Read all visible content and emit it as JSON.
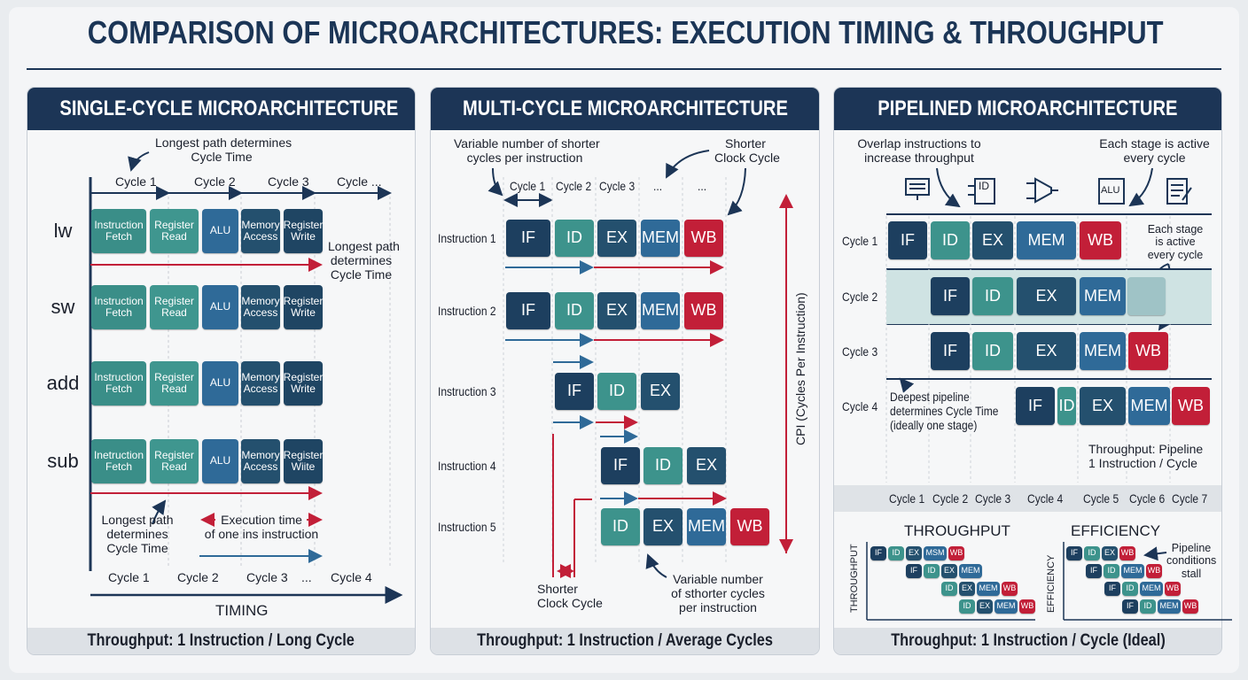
{
  "title": "COMPARISON OF MICROARCHITECTURES: EXECUTION TIMING & THROUGHPUT",
  "colors": {
    "navy": "#1c3556",
    "teal": "#3d938c",
    "blue": "#2f6a98",
    "dark": "#24506e",
    "deep": "#1d3f5f",
    "red": "#c21f38",
    "band": "#cfe3e3"
  },
  "single": {
    "header": "SINGLE-CYCLE MICROARCHITECTURE",
    "note_top": "Longest path determines\nCycle Time",
    "cycles_top": [
      "Cycle 1",
      "Cycle 2",
      "Cycle 3",
      "Cycle ..."
    ],
    "rows": [
      {
        "label": "lw",
        "stages": [
          "Instruction\nFetch",
          "Register\nRead",
          "ALU",
          "Memory\nAccess",
          "Register\nWrite"
        ]
      },
      {
        "label": "sw",
        "stages": [
          "Instruction\nFetch",
          "Register\nRead",
          "ALU",
          "Memory\nAccess",
          "Register\nWrite"
        ]
      },
      {
        "label": "add",
        "stages": [
          "Instruction\nFetch",
          "Register\nRead",
          "ALU",
          "Memory\nAccess",
          "Register\nWrite"
        ]
      },
      {
        "label": "sub",
        "stages": [
          "Inetruction\nFetch",
          "Register\nRead",
          "ALU",
          "Memory\nAccess",
          "Register\nWiite"
        ]
      }
    ],
    "note_right": "Longest path\ndetermines\nCycle Time",
    "note_bottom": "Longest path\ndetermines\nCycle Time",
    "note_exec": "Execution time\nof one ins instruction",
    "cycles_bottom": [
      "Cycle 1",
      "Cycle 2",
      "Cycle 3",
      "...",
      "Cycle 4"
    ],
    "axis_label": "TIMING",
    "footer": "Throughput: 1 Instruction / Long Cycle"
  },
  "multi": {
    "header": "MULTI-CYCLE MICROARCHITECTURE",
    "note_left": "Variable number of shorter\ncycles per instruction",
    "note_right": "Shorter\nClock Cycle",
    "cycles_top": [
      "Cycle 1",
      "Cycle 2",
      "Cycle 3",
      "...",
      "..."
    ],
    "rows": [
      {
        "label": "Instruction 1",
        "stages": [
          "IF",
          "ID",
          "EX",
          "MEM",
          "WB"
        ]
      },
      {
        "label": "Instruction 2",
        "stages": [
          "IF",
          "ID",
          "EX",
          "MEM",
          "WB"
        ]
      },
      {
        "label": "Instruction 3",
        "stages": [
          "IF",
          "ID",
          "EX"
        ]
      },
      {
        "label": "Instruction 4",
        "stages": [
          "IF",
          "ID",
          "EX"
        ]
      },
      {
        "label": "Instruction 5",
        "stages": [
          "ID",
          "EX",
          "MEM",
          "WB"
        ]
      }
    ],
    "cpi_label": "CPI (Cycles Per Instruction)",
    "note_clock": "Shorter\nClock Cycle",
    "note_variable": "Variable number\nof sthorter cycles\nper instruction",
    "footer": "Throughput: 1 Instruction / Average Cycles"
  },
  "pipe": {
    "header": "PIPELINED MICROARCHITECTURE",
    "note_left": "Overlap instructions to\nincrease throughput",
    "note_right": "Each stage is active\nevery cycle",
    "icons": [
      "instruction-memory-icon",
      "decode-id-icon",
      "alu-mux-icon",
      "alu-icon",
      "writeback-list-icon"
    ],
    "icon_text": {
      "decode": "ID",
      "alu": "ALU"
    },
    "rows": [
      {
        "label": "Cycle 1",
        "stages": [
          "IF",
          "ID",
          "EX",
          "MEM",
          "WB"
        ]
      },
      {
        "label": "Cycle 2",
        "stages": [
          "IF",
          "ID",
          "EX",
          "MEM",
          ""
        ]
      },
      {
        "label": "Cycle 3",
        "stages": [
          "IF",
          "ID",
          "EX",
          "MEM",
          "WB"
        ]
      },
      {
        "label": "Cycle 4",
        "stages": [
          "IF",
          "ID",
          "EX",
          "MEM",
          "WB"
        ]
      }
    ],
    "note_stage": "Each stage\nis active\nevery cycle",
    "note_deep": "Deepest pipeline\ndetermines Cycle Time\n(ideally one stage)",
    "note_throughput": "Throughput: Pipeline\n1 Instruction / Cycle",
    "cycles_bottom": [
      "Cycle 1",
      "Cycle 2",
      "Cycle 3",
      "Cycle 4",
      "Cycle 5",
      "Cycle 6",
      "Cycle 7"
    ],
    "throughput": {
      "title": "THROUGHPUT",
      "axis": "THROUGHPUT",
      "rows": [
        [
          "IF",
          "ID",
          "EX",
          "MSM",
          "WB"
        ],
        [
          "IF",
          "ID",
          "EX",
          "MEM"
        ],
        [
          "ID",
          "EX",
          "MEM",
          "WB"
        ],
        [
          "ID",
          "EX",
          "MEM",
          "WB"
        ]
      ]
    },
    "efficiency": {
      "title": "EFFICIENCY",
      "axis": "EFFICIENCY",
      "note": "Pipeline\nconditions\nstall",
      "rows": [
        [
          "IF",
          "ID",
          "EX",
          "WB"
        ],
        [
          "IF",
          "ID",
          "MEM",
          "WB"
        ],
        [
          "IF",
          "ID",
          "MEM",
          "WB"
        ],
        [
          "IF",
          "ID",
          "MEM",
          "WB"
        ]
      ]
    },
    "footer": "Throughput: 1 Instruction / Cycle (Ideal)"
  }
}
